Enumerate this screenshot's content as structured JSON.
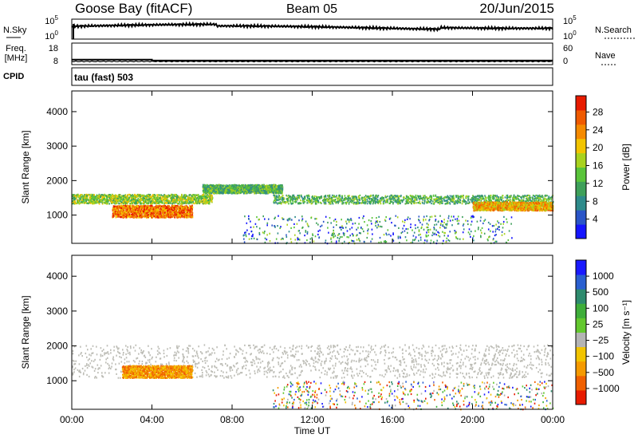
{
  "header": {
    "station": "Goose Bay (fitACF)",
    "beam": "Beam 05",
    "date": "20/Jun/2015"
  },
  "status": {
    "nsky_label": "N.Sky",
    "nsky_ticks": [
      "10^5",
      "10^0"
    ],
    "nsearch_label": "N.Search",
    "nsearch_ticks": [
      "10^5",
      "10^0"
    ],
    "freq_label": "Freq.",
    "freq_unit": "[MHz]",
    "freq_ticks": [
      "18",
      "8"
    ],
    "nave_label": "Nave",
    "nave_ticks": [
      "60",
      "0"
    ],
    "cpid_label": "CPID",
    "cpid_text": "tau (fast) 503",
    "freq_values_mhz": [
      [
        0,
        10.3
      ],
      [
        4.0,
        10.3
      ],
      [
        4.0,
        9.9
      ],
      [
        24,
        9.9
      ]
    ]
  },
  "chart_data": [
    {
      "type": "heatmap",
      "name": "power-panel",
      "ylabel": "Slant Range [km]",
      "xlabel": "",
      "x_ticks": [
        "00:00",
        "04:00",
        "08:00",
        "12:00",
        "16:00",
        "20:00",
        "00:00"
      ],
      "x_range_hours": [
        0,
        24
      ],
      "y_ticks": [
        1000,
        2000,
        3000,
        4000
      ],
      "y_range_km": [
        180,
        4600
      ],
      "colorbar": {
        "label": "Power [dB]",
        "ticks": [
          "4",
          "8",
          "12",
          "16",
          "20",
          "24",
          "28"
        ],
        "colors": [
          "#1515ff",
          "#2a55c8",
          "#2e8b8b",
          "#3ea05a",
          "#59c43a",
          "#a8d21e",
          "#f2c400",
          "#f58a00",
          "#f05a00",
          "#e81b00"
        ]
      },
      "echo_regions": [
        {
          "t0": 0.0,
          "t1": 7.0,
          "r0": 1350,
          "r1": 1620,
          "level": "yellow-green"
        },
        {
          "t0": 2.0,
          "t1": 6.0,
          "r0": 950,
          "r1": 1300,
          "level": "red-orange"
        },
        {
          "t0": 6.5,
          "t1": 10.5,
          "r0": 1650,
          "r1": 1900,
          "level": "green"
        },
        {
          "t0": 10.0,
          "t1": 24.0,
          "r0": 1350,
          "r1": 1600,
          "level": "green"
        },
        {
          "t0": 20.0,
          "t1": 24.0,
          "r0": 1150,
          "r1": 1400,
          "level": "orange"
        },
        {
          "t0": 8.5,
          "t1": 22.0,
          "r0": 200,
          "r1": 1000,
          "level": "scattered"
        }
      ]
    },
    {
      "type": "heatmap",
      "name": "velocity-panel",
      "ylabel": "Slant Range [km]",
      "xlabel": "Time UT",
      "x_ticks": [
        "00:00",
        "04:00",
        "08:00",
        "12:00",
        "16:00",
        "20:00",
        "00:00"
      ],
      "x_range_hours": [
        0,
        24
      ],
      "y_ticks": [
        1000,
        2000,
        3000,
        4000
      ],
      "y_range_km": [
        180,
        4600
      ],
      "colorbar": {
        "label": "Velocity [m s⁻¹]",
        "ticks": [
          "1000",
          "500",
          "100",
          "25",
          "−25",
          "−100",
          "−500",
          "−1000"
        ],
        "colors": [
          "#1a1aff",
          "#2a5fd0",
          "#2e8b6e",
          "#3fae3a",
          "#63c82e",
          "#b4b4b4",
          "#f2c400",
          "#f59a00",
          "#f06000",
          "#e81b00"
        ]
      },
      "echo_regions": [
        {
          "t0": 0.0,
          "t1": 24.0,
          "r0": 1100,
          "r1": 2050,
          "level": "ground-scatter-gray"
        },
        {
          "t0": 2.5,
          "t1": 6.0,
          "r0": 1100,
          "r1": 1450,
          "level": "orange"
        },
        {
          "t0": 10.0,
          "t1": 24.0,
          "r0": 200,
          "r1": 1000,
          "level": "mixed"
        }
      ]
    }
  ]
}
